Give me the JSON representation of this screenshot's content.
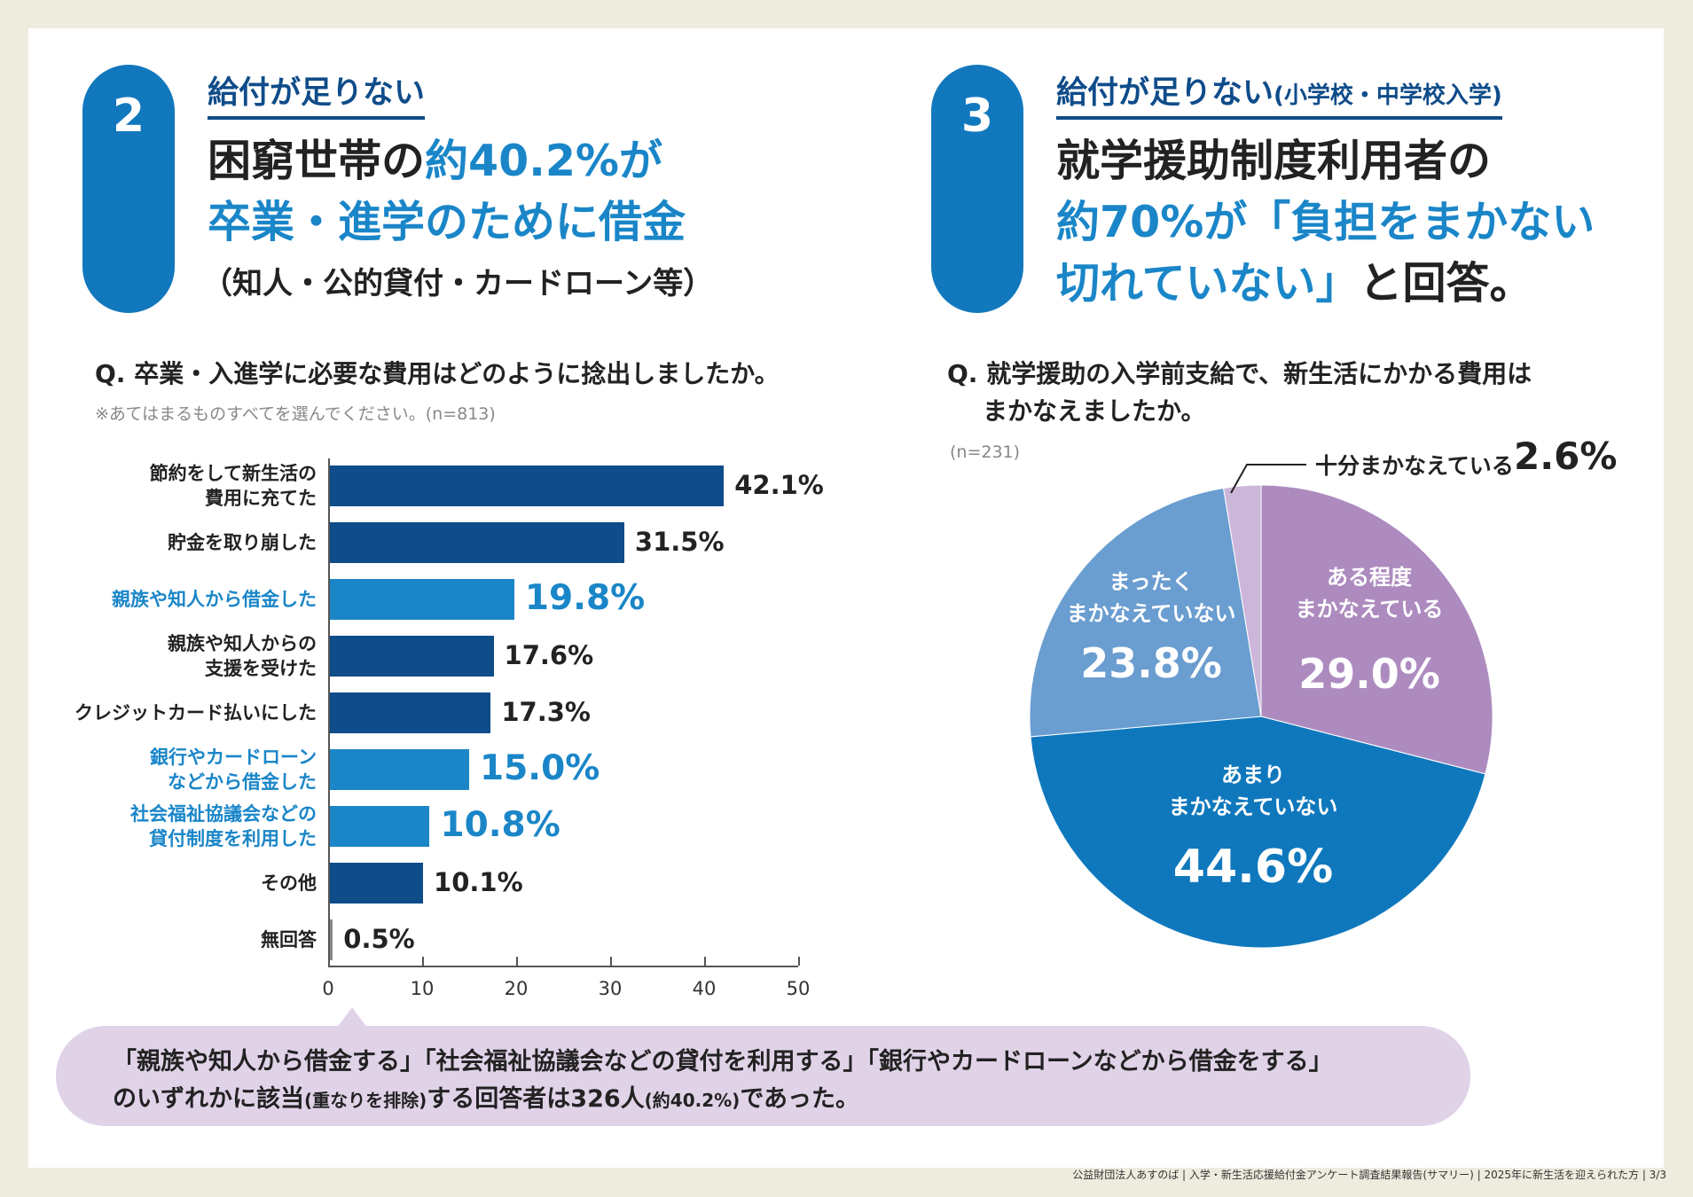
{
  "left": {
    "number": "2",
    "kicker": "給付が足りない",
    "headline": {
      "line1_black": "困窮世帯の",
      "line1_blue": "約40.2%が",
      "line2_blue": "卒業・進学のために借金",
      "line3": "（知人・公的貸付・カードローン等）"
    },
    "question": "Q. 卒業・入進学に必要な費用はどのように捻出しましたか。",
    "note": "※あてはまるものすべてを選んでください。(n=813)"
  },
  "right": {
    "number": "3",
    "kicker": "給付が足りない",
    "kicker_small": "(小学校・中学校入学)",
    "headline": {
      "line1": "就学援助制度利用者の",
      "line2_blue": "約70%が「負担をまかない",
      "line3_blue": "切れていない」",
      "line3_black": "と回答。"
    },
    "question_line1": "Q. 就学援助の入学前支給で、新生活にかかる費用は",
    "question_line2": "まかなえましたか。",
    "note": "(n=231)"
  },
  "chart_data": [
    {
      "type": "bar",
      "orientation": "horizontal",
      "xlim": [
        0,
        50
      ],
      "ticks": [
        "0",
        "10",
        "20",
        "30",
        "40",
        "50"
      ],
      "colors": {
        "default": "#0f4c8a",
        "highlight": "#1a86c8"
      },
      "categories": [
        "節約をして新生活の\n費用に充てた",
        "貯金を取り崩した",
        "親族や知人から借金した",
        "親族や知人からの\n支援を受けた",
        "クレジットカード払いにした",
        "銀行やカードローン\nなどから借金した",
        "社会福祉協議会などの\n貸付制度を利用した",
        "その他",
        "無回答"
      ],
      "values": [
        42.1,
        31.5,
        19.8,
        17.6,
        17.3,
        15.0,
        10.8,
        10.1,
        0.5
      ],
      "value_labels": [
        "42.1%",
        "31.5%",
        "19.8%",
        "17.6%",
        "17.3%",
        "15.0%",
        "10.8%",
        "10.1%",
        "0.5%"
      ],
      "highlighted": [
        false,
        false,
        true,
        false,
        false,
        true,
        true,
        false,
        false
      ]
    },
    {
      "type": "pie",
      "start": "top",
      "direction": "clockwise",
      "slices": [
        {
          "label": "ある程度\nまかなえている",
          "value": 29.0,
          "value_label": "29.0%",
          "color": "#ad8bbf"
        },
        {
          "label": "あまり\nまかなえていない",
          "value": 44.6,
          "value_label": "44.6%",
          "color": "#0f78bd"
        },
        {
          "label": "まったく\nまかなえていない",
          "value": 23.8,
          "value_label": "23.8%",
          "color": "#6a9dd0"
        },
        {
          "label": "十分まかなえている",
          "value": 2.6,
          "value_label": "2.6%",
          "color": "#ccb6da"
        }
      ]
    }
  ],
  "callout": {
    "line1": "「親族や知人から借金する」「社会福祉協議会などの貸付を利用する」「銀行やカードローンなどから借金をする」",
    "line2_a": "のいずれかに該当",
    "line2_b": "(重なりを排除)",
    "line2_c": "する回答者は326人",
    "line2_d": "(約40.2%)",
    "line2_e": "であった。"
  },
  "footer": "公益財団法人あすのば | 入学・新生活応援給付金アンケート調査結果報告(サマリー) | 2025年に新生活を迎えられた方 | 3/3"
}
